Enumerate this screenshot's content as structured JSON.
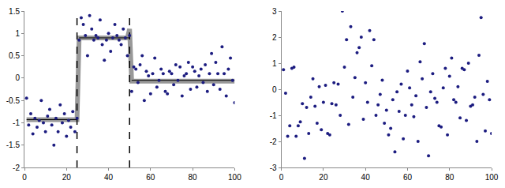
{
  "chart_data": [
    {
      "type": "scatter",
      "xlim": [
        0,
        100
      ],
      "xticks": [
        0,
        20,
        40,
        60,
        80,
        100
      ],
      "ylim": [
        -2,
        1.5
      ],
      "yticks": [
        -2,
        -1.5,
        -1,
        -0.5,
        0,
        0.5,
        1,
        1.5
      ],
      "grid": false,
      "series": [
        {
          "type": "line",
          "line_style": "thick",
          "color": "#999999",
          "x": [
            1,
            25,
            26,
            49,
            50,
            51,
            100
          ],
          "values": [
            -0.93,
            -0.93,
            0.9,
            0.9,
            1.1,
            -0.07,
            -0.07
          ]
        },
        {
          "type": "line",
          "line_style": "solid",
          "color": "#000000",
          "x": [
            1,
            25,
            null,
            26,
            50,
            null,
            51,
            100
          ],
          "values": [
            -0.93,
            -0.93,
            null,
            0.9,
            0.9,
            null,
            -0.05,
            -0.05
          ]
        },
        {
          "type": "line",
          "line_style": "dashed",
          "color": "#000000",
          "x": [
            25,
            25,
            null,
            50,
            50
          ],
          "values": [
            -2,
            1.5,
            null,
            -2,
            1.5
          ]
        },
        {
          "type": "scatter",
          "marker": "circle",
          "color": "#1c1c80",
          "x": [
            1,
            2,
            3,
            4,
            5,
            6,
            7,
            8,
            9,
            10,
            11,
            12,
            13,
            14,
            15,
            16,
            17,
            18,
            19,
            20,
            21,
            22,
            23,
            24,
            25,
            26,
            27,
            28,
            29,
            30,
            31,
            32,
            33,
            34,
            35,
            36,
            37,
            38,
            39,
            40,
            41,
            42,
            43,
            44,
            45,
            46,
            47,
            48,
            49,
            50,
            51,
            52,
            53,
            54,
            55,
            56,
            57,
            58,
            59,
            60,
            61,
            62,
            63,
            64,
            65,
            66,
            67,
            68,
            69,
            70,
            71,
            72,
            73,
            74,
            75,
            76,
            77,
            78,
            79,
            80,
            81,
            82,
            83,
            84,
            85,
            86,
            87,
            88,
            89,
            90,
            91,
            92,
            93,
            94,
            95,
            96,
            97,
            98,
            99,
            100
          ],
          "values": [
            -0.45,
            -1.05,
            -0.8,
            -1.25,
            -0.9,
            -1.1,
            -0.95,
            -0.5,
            -1.0,
            -1.2,
            -0.85,
            -0.7,
            -1.05,
            -1.5,
            -0.9,
            -1.2,
            -0.6,
            -1.0,
            -0.8,
            -1.3,
            -0.95,
            -1.1,
            -0.75,
            -1.2,
            -0.9,
            0.85,
            1.35,
            1.2,
            0.95,
            0.5,
            1.4,
            1.1,
            0.85,
            0.95,
            0.9,
            1.3,
            0.75,
            0.4,
            0.85,
            1.0,
            0.6,
            0.9,
            1.2,
            0.95,
            0.85,
            0.75,
            1.1,
            0.9,
            0.5,
            0.95,
            -0.3,
            0.25,
            0.2,
            -0.1,
            0.3,
            0.5,
            -0.5,
            0.15,
            0.05,
            -0.35,
            0.1,
            0.45,
            -0.2,
            -0.05,
            0.2,
            0.1,
            -0.3,
            -0.35,
            0.15,
            0.1,
            -0.15,
            0.3,
            -0.05,
            0.25,
            -0.4,
            0.05,
            0.1,
            0.35,
            -0.25,
            0.25,
            0.15,
            -0.2,
            0.05,
            0.2,
            -0.1,
            0.3,
            -0.3,
            0.1,
            0.55,
            -0.15,
            0.35,
            0.1,
            -0.25,
            0.7,
            0.1,
            -0.4,
            0.2,
            0.45,
            -0.05,
            -0.55
          ]
        }
      ]
    },
    {
      "type": "scatter",
      "xlim": [
        0,
        100
      ],
      "xticks": [
        0,
        20,
        40,
        60,
        80,
        100
      ],
      "ylim": [
        -3,
        3
      ],
      "yticks": [
        -3,
        -2,
        -1,
        0,
        1,
        2,
        3
      ],
      "grid": false,
      "series": [
        {
          "type": "scatter",
          "marker": "circle",
          "color": "#1c1c80",
          "x": [
            1,
            2,
            3,
            4,
            5,
            6,
            7,
            8,
            9,
            10,
            11,
            12,
            13,
            14,
            15,
            16,
            17,
            18,
            19,
            20,
            21,
            22,
            23,
            24,
            25,
            26,
            27,
            28,
            29,
            30,
            31,
            32,
            33,
            34,
            35,
            36,
            37,
            38,
            39,
            40,
            41,
            42,
            43,
            44,
            45,
            46,
            47,
            48,
            49,
            50,
            51,
            52,
            53,
            54,
            55,
            56,
            57,
            58,
            59,
            60,
            61,
            62,
            63,
            64,
            65,
            66,
            67,
            68,
            69,
            70,
            71,
            72,
            73,
            74,
            75,
            76,
            77,
            78,
            79,
            80,
            81,
            82,
            83,
            84,
            85,
            86,
            87,
            88,
            89,
            90,
            91,
            92,
            93,
            94,
            95,
            96,
            97,
            98,
            99,
            100
          ],
          "values": [
            0.75,
            -0.15,
            -1.8,
            -1.4,
            0.8,
            0.85,
            -1.8,
            -1.4,
            -1.25,
            -0.55,
            -2.65,
            -0.7,
            -1.7,
            -0.3,
            0.4,
            -0.65,
            -1.3,
            0.1,
            -1.55,
            -0.5,
            0.15,
            -1.7,
            -1.75,
            -0.55,
            0.25,
            -0.6,
            0.2,
            -1.0,
            3.0,
            0.85,
            1.9,
            -1.35,
            2.4,
            -0.3,
            0.45,
            1.4,
            1.6,
            2.0,
            -1.15,
            0.25,
            -0.5,
            2.25,
            0.9,
            1.9,
            -1.0,
            -0.6,
            -0.2,
            0.35,
            -1.3,
            -0.8,
            -1.75,
            -1.5,
            -0.4,
            -2.4,
            -0.1,
            -0.85,
            0.2,
            -1.9,
            -1.0,
            0.7,
            0.05,
            -0.6,
            -1.05,
            -0.25,
            -2.0,
            1.05,
            0.4,
            1.75,
            -0.7,
            -2.55,
            -0.1,
            0.6,
            -0.35,
            -0.5,
            -1.4,
            -1.45,
            0.05,
            0.8,
            -1.75,
            0.5,
            1.2,
            -0.4,
            -0.5,
            0.1,
            -1.1,
            0.8,
            0.75,
            -1.2,
            1.0,
            -0.65,
            -0.6,
            -0.3,
            -2.0,
            1.3,
            2.75,
            -0.2,
            -1.6,
            0.3,
            -0.4,
            -1.7
          ]
        }
      ]
    }
  ]
}
